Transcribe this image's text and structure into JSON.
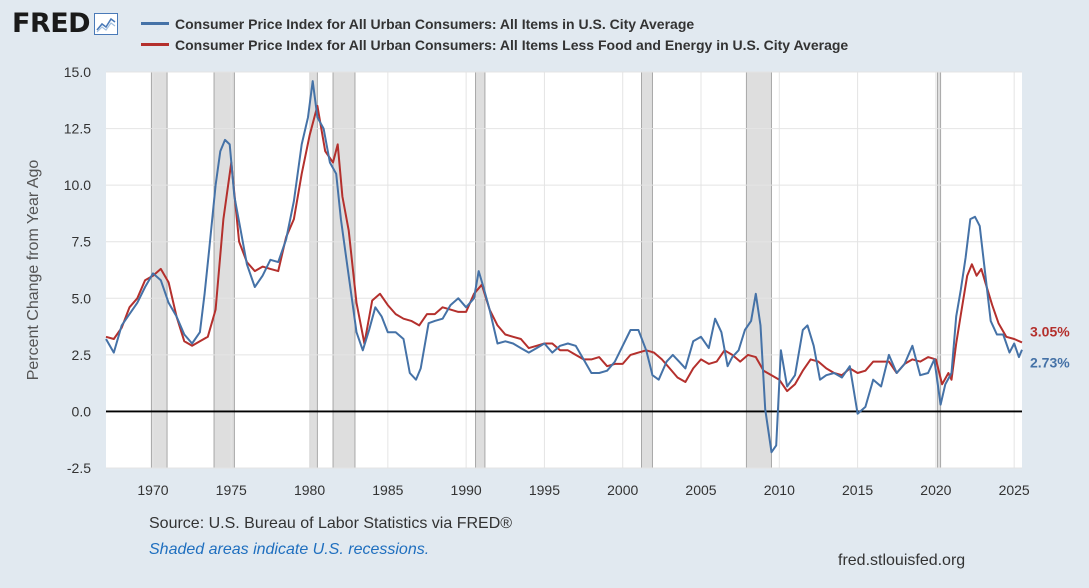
{
  "logo": {
    "text": "FRED",
    "icon": "trend-chart-icon"
  },
  "chart_data": {
    "type": "line",
    "title": "",
    "ylabel": "Percent Change from Year Ago",
    "xlabel": "",
    "xlim": [
      1967.0,
      2025.5
    ],
    "ylim": [
      -2.5,
      15.0
    ],
    "x_ticks": [
      "1970",
      "1975",
      "1980",
      "1985",
      "1990",
      "1995",
      "2000",
      "2005",
      "2010",
      "2015",
      "2020",
      "2025"
    ],
    "y_ticks": [
      "15.0",
      "12.5",
      "10.0",
      "7.5",
      "5.0",
      "2.5",
      "0.0",
      "-2.5"
    ],
    "grid": true,
    "legend_position": "top",
    "zero_line": true,
    "recessions": [
      [
        1969.9,
        1970.9
      ],
      [
        1973.9,
        1975.2
      ],
      [
        1980.0,
        1980.5
      ],
      [
        1981.5,
        1982.9
      ],
      [
        1990.6,
        1991.2
      ],
      [
        2001.2,
        2001.9
      ],
      [
        2007.9,
        2009.5
      ],
      [
        2020.1,
        2020.3
      ]
    ],
    "series": [
      {
        "name": "Consumer Price Index for All Urban Consumers: All Items in U.S. City Average",
        "color": "#4572a7",
        "end_label": "2.73%",
        "x": [
          1967.0,
          1967.5,
          1968.0,
          1968.5,
          1969.0,
          1969.5,
          1970.0,
          1970.5,
          1971.0,
          1971.5,
          1972.0,
          1972.5,
          1973.0,
          1973.3,
          1973.6,
          1974.0,
          1974.3,
          1974.6,
          1974.9,
          1975.2,
          1975.6,
          1976.0,
          1976.5,
          1977.0,
          1977.5,
          1978.0,
          1978.5,
          1979.0,
          1979.5,
          1979.9,
          1980.2,
          1980.5,
          1980.9,
          1981.3,
          1981.7,
          1982.0,
          1982.4,
          1982.8,
          1983.0,
          1983.4,
          1983.8,
          1984.2,
          1984.6,
          1985.0,
          1985.5,
          1986.0,
          1986.4,
          1986.8,
          1987.1,
          1987.6,
          1988.0,
          1988.5,
          1989.0,
          1989.5,
          1990.0,
          1990.5,
          1990.8,
          1991.1,
          1991.5,
          1992.0,
          1992.5,
          1993.0,
          1993.5,
          1994.0,
          1994.5,
          1995.0,
          1995.5,
          1996.0,
          1996.5,
          1997.0,
          1997.5,
          1998.0,
          1998.5,
          1999.0,
          1999.5,
          2000.0,
          2000.5,
          2001.0,
          2001.5,
          2001.9,
          2002.3,
          2002.8,
          2003.2,
          2003.6,
          2004.0,
          2004.5,
          2005.0,
          2005.5,
          2005.9,
          2006.3,
          2006.7,
          2007.0,
          2007.4,
          2007.8,
          2008.2,
          2008.5,
          2008.8,
          2009.1,
          2009.5,
          2009.8,
          2010.1,
          2010.5,
          2011.0,
          2011.5,
          2011.8,
          2012.2,
          2012.6,
          2013.0,
          2013.5,
          2014.0,
          2014.5,
          2015.0,
          2015.5,
          2016.0,
          2016.5,
          2017.0,
          2017.5,
          2018.0,
          2018.5,
          2019.0,
          2019.5,
          2019.9,
          2020.3,
          2020.6,
          2021.0,
          2021.3,
          2021.6,
          2021.9,
          2022.2,
          2022.5,
          2022.8,
          2023.1,
          2023.5,
          2023.9,
          2024.3,
          2024.7,
          2025.0,
          2025.3,
          2025.5
        ],
        "values": [
          3.2,
          2.6,
          3.8,
          4.3,
          4.8,
          5.5,
          6.1,
          5.8,
          4.8,
          4.2,
          3.4,
          3.0,
          3.5,
          5.2,
          7.2,
          10.0,
          11.5,
          12.0,
          11.8,
          9.5,
          8.0,
          6.5,
          5.5,
          6.0,
          6.7,
          6.6,
          7.6,
          9.3,
          11.8,
          13.0,
          14.6,
          13.0,
          12.5,
          11.0,
          10.5,
          8.5,
          6.5,
          4.5,
          3.5,
          2.7,
          3.6,
          4.6,
          4.2,
          3.5,
          3.5,
          3.2,
          1.7,
          1.4,
          1.9,
          3.9,
          4.0,
          4.1,
          4.7,
          5.0,
          4.6,
          5.0,
          6.2,
          5.5,
          4.5,
          3.0,
          3.1,
          3.0,
          2.8,
          2.6,
          2.8,
          3.0,
          2.6,
          2.9,
          3.0,
          2.9,
          2.3,
          1.7,
          1.7,
          1.8,
          2.2,
          2.9,
          3.6,
          3.6,
          2.7,
          1.6,
          1.4,
          2.2,
          2.5,
          2.2,
          1.9,
          3.1,
          3.3,
          2.8,
          4.1,
          3.5,
          2.0,
          2.4,
          2.7,
          3.6,
          4.0,
          5.2,
          3.8,
          0.1,
          -1.8,
          -1.5,
          2.7,
          1.1,
          1.6,
          3.6,
          3.8,
          2.9,
          1.4,
          1.6,
          1.7,
          1.5,
          2.0,
          -0.1,
          0.2,
          1.4,
          1.1,
          2.5,
          1.7,
          2.1,
          2.9,
          1.6,
          1.7,
          2.3,
          0.3,
          1.2,
          1.7,
          4.2,
          5.4,
          6.8,
          8.5,
          8.6,
          8.2,
          6.4,
          4.0,
          3.4,
          3.4,
          2.6,
          3.0,
          2.4,
          2.73
        ]
      },
      {
        "name": "Consumer Price Index for All Urban Consumers: All Items Less Food and Energy in U.S. City Average",
        "color": "#b4302d",
        "end_label": "3.05%",
        "x": [
          1967.0,
          1967.5,
          1968.0,
          1968.5,
          1969.0,
          1969.5,
          1970.0,
          1970.5,
          1971.0,
          1971.5,
          1972.0,
          1972.5,
          1973.0,
          1973.5,
          1974.0,
          1974.5,
          1975.0,
          1975.5,
          1976.0,
          1976.5,
          1977.0,
          1977.5,
          1978.0,
          1978.5,
          1979.0,
          1979.5,
          1980.0,
          1980.5,
          1981.0,
          1981.5,
          1981.8,
          1982.1,
          1982.5,
          1983.0,
          1983.5,
          1984.0,
          1984.5,
          1985.0,
          1985.5,
          1986.0,
          1986.5,
          1987.0,
          1987.5,
          1988.0,
          1988.5,
          1989.0,
          1989.5,
          1990.0,
          1990.5,
          1991.0,
          1991.5,
          1992.0,
          1992.5,
          1993.0,
          1993.5,
          1994.0,
          1994.5,
          1995.0,
          1995.5,
          1996.0,
          1996.5,
          1997.0,
          1997.5,
          1998.0,
          1998.5,
          1999.0,
          1999.5,
          2000.0,
          2000.5,
          2001.0,
          2001.5,
          2002.0,
          2002.5,
          2003.0,
          2003.5,
          2004.0,
          2004.5,
          2005.0,
          2005.5,
          2006.0,
          2006.5,
          2007.0,
          2007.5,
          2008.0,
          2008.5,
          2009.0,
          2009.5,
          2010.0,
          2010.5,
          2011.0,
          2011.5,
          2012.0,
          2012.5,
          2013.0,
          2013.5,
          2014.0,
          2014.5,
          2015.0,
          2015.5,
          2016.0,
          2016.5,
          2017.0,
          2017.5,
          2018.0,
          2018.5,
          2019.0,
          2019.5,
          2020.0,
          2020.4,
          2020.8,
          2021.0,
          2021.3,
          2021.6,
          2022.0,
          2022.3,
          2022.6,
          2022.9,
          2023.2,
          2023.6,
          2024.0,
          2024.5,
          2025.0,
          2025.5
        ],
        "values": [
          3.3,
          3.2,
          3.7,
          4.6,
          5.0,
          5.8,
          6.0,
          6.3,
          5.7,
          4.2,
          3.1,
          2.9,
          3.1,
          3.3,
          4.5,
          8.5,
          11.0,
          7.5,
          6.6,
          6.2,
          6.4,
          6.3,
          6.2,
          7.7,
          8.5,
          10.5,
          12.2,
          13.5,
          11.5,
          11.0,
          11.8,
          9.5,
          8.0,
          4.8,
          3.0,
          4.9,
          5.2,
          4.7,
          4.3,
          4.1,
          4.0,
          3.8,
          4.3,
          4.3,
          4.6,
          4.5,
          4.4,
          4.4,
          5.2,
          5.6,
          4.5,
          3.8,
          3.4,
          3.3,
          3.2,
          2.8,
          2.9,
          3.0,
          3.0,
          2.7,
          2.7,
          2.5,
          2.3,
          2.3,
          2.4,
          2.0,
          2.1,
          2.1,
          2.5,
          2.6,
          2.7,
          2.6,
          2.3,
          1.9,
          1.5,
          1.3,
          1.9,
          2.3,
          2.1,
          2.2,
          2.7,
          2.5,
          2.2,
          2.5,
          2.4,
          1.8,
          1.6,
          1.4,
          0.9,
          1.2,
          1.8,
          2.3,
          2.2,
          1.9,
          1.7,
          1.6,
          1.9,
          1.7,
          1.8,
          2.2,
          2.2,
          2.2,
          1.7,
          2.1,
          2.3,
          2.2,
          2.4,
          2.3,
          1.2,
          1.7,
          1.4,
          3.0,
          4.3,
          6.0,
          6.5,
          6.0,
          6.3,
          5.6,
          4.7,
          3.9,
          3.3,
          3.2,
          3.05
        ]
      }
    ]
  },
  "footer": {
    "source": "Source: U.S. Bureau of Labor Statistics via FRED®",
    "note": "Shaded areas indicate U.S. recessions.",
    "site": "fred.stlouisfed.org"
  }
}
